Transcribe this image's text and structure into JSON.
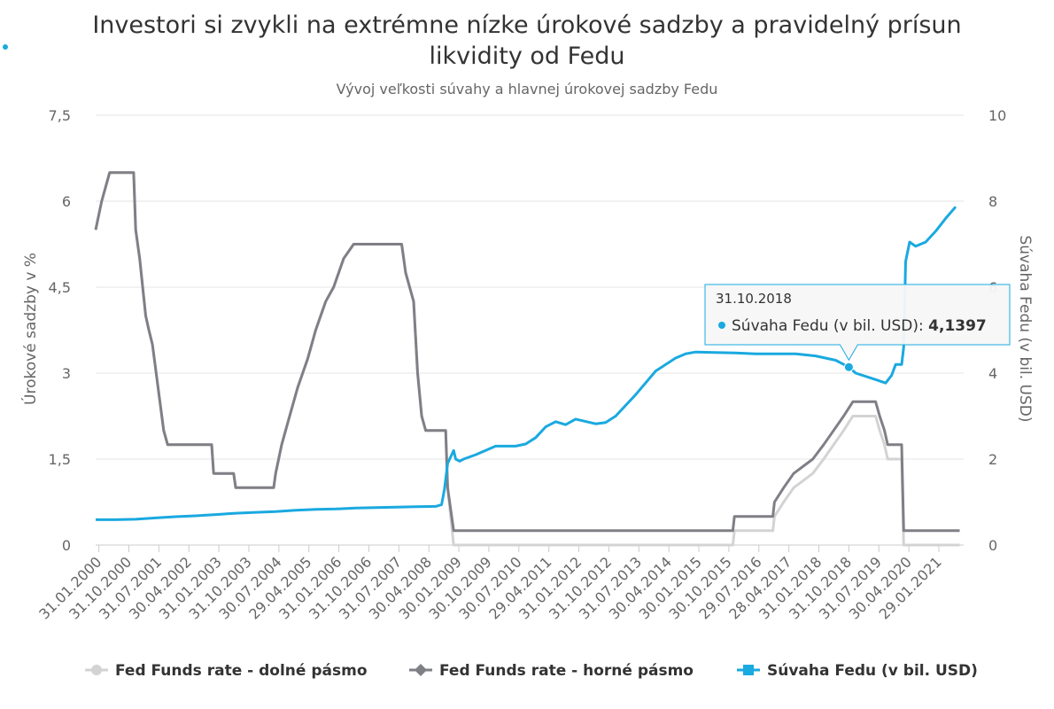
{
  "chart_data": {
    "type": "line",
    "title": "Investori si zvykli na extrémne nízke úrokové sadzby a pravidelný prísun likvidity od Fedu",
    "title_lines": [
      "Investori si zvykli na extrémne nízke úrokové sadzby a pravidelný prísun",
      "likvidity od Fedu"
    ],
    "subtitle": "Vývoj veľkosti súvahy a hlavnej úrokovej sadzby Fedu",
    "y_left": {
      "label": "Úrokové sadzby v %",
      "range": [
        0,
        7.5
      ],
      "ticks": [
        "0",
        "1,5",
        "3",
        "4,5",
        "6",
        "7,5"
      ],
      "tick_values": [
        0,
        1.5,
        3,
        4.5,
        6,
        7.5
      ]
    },
    "y_right": {
      "label": "Súvaha Fedu (v bil. USD)",
      "range": [
        0,
        10
      ],
      "ticks": [
        "0",
        "2",
        "4",
        "6",
        "8",
        "10"
      ],
      "tick_values": [
        0,
        2,
        4,
        6,
        8,
        10
      ]
    },
    "x_range": [
      2000.0,
      2021.7
    ],
    "x_tick_labels": [
      "31.01.2000",
      "31.10.2000",
      "31.07.2001",
      "30.04.2002",
      "31.01.2003",
      "31.10.2003",
      "30.07.2004",
      "29.04.2005",
      "31.01.2006",
      "31.10.2006",
      "31.07.2007",
      "30.04.2008",
      "30.01.2009",
      "30.10.2009",
      "30.07.2010",
      "29.04.2011",
      "31.01.2012",
      "31.10.2012",
      "31.07.2013",
      "30.04.2014",
      "30.01.2015",
      "30.10.2015",
      "29.07.2016",
      "28.04.2017",
      "31.01.2018",
      "31.10.2018",
      "31.07.2019",
      "30.04.2020",
      "29.01.2021"
    ],
    "x_tick_values": [
      2000.08,
      2000.83,
      2001.58,
      2002.33,
      2003.08,
      2003.83,
      2004.58,
      2005.33,
      2006.08,
      2006.83,
      2007.58,
      2008.33,
      2009.08,
      2009.83,
      2010.58,
      2011.33,
      2012.08,
      2012.83,
      2013.58,
      2014.33,
      2015.08,
      2015.83,
      2016.58,
      2017.33,
      2018.08,
      2018.83,
      2019.58,
      2020.33,
      2021.08
    ],
    "grid": true,
    "legend_position": "bottom",
    "series": [
      {
        "name": "Fed Funds rate - dolné pásmo",
        "axis": "left",
        "color": "#d3d3d3",
        "marker": "circle",
        "points": [
          [
            2000.0,
            5.5
          ],
          [
            2000.15,
            6.0
          ],
          [
            2000.35,
            6.5
          ],
          [
            2000.95,
            6.5
          ],
          [
            2001.0,
            5.5
          ],
          [
            2001.1,
            5.0
          ],
          [
            2001.25,
            4.0
          ],
          [
            2001.33,
            3.75
          ],
          [
            2001.42,
            3.5
          ],
          [
            2001.7,
            2.0
          ],
          [
            2001.8,
            1.75
          ],
          [
            2002.9,
            1.75
          ],
          [
            2002.95,
            1.25
          ],
          [
            2003.45,
            1.25
          ],
          [
            2003.5,
            1.0
          ],
          [
            2004.45,
            1.0
          ],
          [
            2004.5,
            1.25
          ],
          [
            2004.65,
            1.75
          ],
          [
            2004.85,
            2.25
          ],
          [
            2005.05,
            2.75
          ],
          [
            2005.3,
            3.25
          ],
          [
            2005.5,
            3.75
          ],
          [
            2005.75,
            4.25
          ],
          [
            2005.95,
            4.5
          ],
          [
            2006.2,
            5.0
          ],
          [
            2006.45,
            5.25
          ],
          [
            2007.65,
            5.25
          ],
          [
            2007.75,
            4.75
          ],
          [
            2007.85,
            4.5
          ],
          [
            2007.95,
            4.25
          ],
          [
            2008.05,
            3.0
          ],
          [
            2008.15,
            2.25
          ],
          [
            2008.25,
            2.0
          ],
          [
            2008.75,
            2.0
          ],
          [
            2008.8,
            1.0
          ],
          [
            2008.95,
            0.0
          ],
          [
            2015.93,
            0.0
          ],
          [
            2015.97,
            0.25
          ],
          [
            2016.93,
            0.25
          ],
          [
            2016.97,
            0.5
          ],
          [
            2017.2,
            0.75
          ],
          [
            2017.45,
            1.0
          ],
          [
            2017.93,
            1.25
          ],
          [
            2018.2,
            1.5
          ],
          [
            2018.45,
            1.75
          ],
          [
            2018.7,
            2.0
          ],
          [
            2018.93,
            2.25
          ],
          [
            2019.5,
            2.25
          ],
          [
            2019.6,
            2.0
          ],
          [
            2019.72,
            1.75
          ],
          [
            2019.8,
            1.5
          ],
          [
            2020.15,
            1.5
          ],
          [
            2020.2,
            0.0
          ],
          [
            2021.6,
            0.0
          ]
        ]
      },
      {
        "name": "Fed Funds rate - horné pásmo",
        "axis": "left",
        "color": "#7f7f86",
        "marker": "diamond",
        "points": [
          [
            2000.0,
            5.5
          ],
          [
            2000.15,
            6.0
          ],
          [
            2000.35,
            6.5
          ],
          [
            2000.95,
            6.5
          ],
          [
            2001.0,
            5.5
          ],
          [
            2001.1,
            5.0
          ],
          [
            2001.25,
            4.0
          ],
          [
            2001.33,
            3.75
          ],
          [
            2001.42,
            3.5
          ],
          [
            2001.7,
            2.0
          ],
          [
            2001.8,
            1.75
          ],
          [
            2002.9,
            1.75
          ],
          [
            2002.95,
            1.25
          ],
          [
            2003.45,
            1.25
          ],
          [
            2003.5,
            1.0
          ],
          [
            2004.45,
            1.0
          ],
          [
            2004.5,
            1.25
          ],
          [
            2004.65,
            1.75
          ],
          [
            2004.85,
            2.25
          ],
          [
            2005.05,
            2.75
          ],
          [
            2005.3,
            3.25
          ],
          [
            2005.5,
            3.75
          ],
          [
            2005.75,
            4.25
          ],
          [
            2005.95,
            4.5
          ],
          [
            2006.2,
            5.0
          ],
          [
            2006.45,
            5.25
          ],
          [
            2007.65,
            5.25
          ],
          [
            2007.75,
            4.75
          ],
          [
            2007.85,
            4.5
          ],
          [
            2007.95,
            4.25
          ],
          [
            2008.05,
            3.0
          ],
          [
            2008.15,
            2.25
          ],
          [
            2008.25,
            2.0
          ],
          [
            2008.75,
            2.0
          ],
          [
            2008.8,
            1.0
          ],
          [
            2008.95,
            0.25
          ],
          [
            2015.93,
            0.25
          ],
          [
            2015.97,
            0.5
          ],
          [
            2016.93,
            0.5
          ],
          [
            2016.97,
            0.75
          ],
          [
            2017.2,
            1.0
          ],
          [
            2017.45,
            1.25
          ],
          [
            2017.93,
            1.5
          ],
          [
            2018.2,
            1.75
          ],
          [
            2018.45,
            2.0
          ],
          [
            2018.7,
            2.25
          ],
          [
            2018.93,
            2.5
          ],
          [
            2019.5,
            2.5
          ],
          [
            2019.6,
            2.25
          ],
          [
            2019.72,
            2.0
          ],
          [
            2019.8,
            1.75
          ],
          [
            2020.15,
            1.75
          ],
          [
            2020.2,
            0.25
          ],
          [
            2021.6,
            0.25
          ]
        ]
      },
      {
        "name": "Súvaha Fedu (v bil. USD)",
        "axis": "right",
        "color": "#1aa9e0",
        "marker": "square",
        "points": [
          [
            2000.0,
            0.59
          ],
          [
            2000.5,
            0.59
          ],
          [
            2001.0,
            0.6
          ],
          [
            2001.5,
            0.63
          ],
          [
            2002.0,
            0.66
          ],
          [
            2002.5,
            0.68
          ],
          [
            2003.0,
            0.71
          ],
          [
            2003.5,
            0.74
          ],
          [
            2004.0,
            0.76
          ],
          [
            2004.5,
            0.78
          ],
          [
            2005.0,
            0.81
          ],
          [
            2005.5,
            0.83
          ],
          [
            2006.0,
            0.84
          ],
          [
            2006.5,
            0.86
          ],
          [
            2007.0,
            0.87
          ],
          [
            2007.5,
            0.88
          ],
          [
            2008.0,
            0.89
          ],
          [
            2008.5,
            0.9
          ],
          [
            2008.65,
            0.94
          ],
          [
            2008.72,
            1.3
          ],
          [
            2008.8,
            1.9
          ],
          [
            2008.95,
            2.2
          ],
          [
            2009.0,
            2.0
          ],
          [
            2009.1,
            1.95
          ],
          [
            2009.2,
            2.0
          ],
          [
            2009.5,
            2.1
          ],
          [
            2010.0,
            2.3
          ],
          [
            2010.5,
            2.3
          ],
          [
            2010.75,
            2.35
          ],
          [
            2011.0,
            2.5
          ],
          [
            2011.25,
            2.75
          ],
          [
            2011.5,
            2.87
          ],
          [
            2011.75,
            2.8
          ],
          [
            2012.0,
            2.93
          ],
          [
            2012.5,
            2.82
          ],
          [
            2012.75,
            2.85
          ],
          [
            2013.0,
            3.0
          ],
          [
            2013.5,
            3.5
          ],
          [
            2014.0,
            4.05
          ],
          [
            2014.5,
            4.35
          ],
          [
            2014.75,
            4.45
          ],
          [
            2015.0,
            4.49
          ],
          [
            2016.0,
            4.47
          ],
          [
            2016.5,
            4.45
          ],
          [
            2017.0,
            4.45
          ],
          [
            2017.5,
            4.45
          ],
          [
            2018.0,
            4.4
          ],
          [
            2018.5,
            4.3
          ],
          [
            2018.83,
            4.1397
          ],
          [
            2019.0,
            4.0
          ],
          [
            2019.5,
            3.85
          ],
          [
            2019.75,
            3.77
          ],
          [
            2019.9,
            3.95
          ],
          [
            2020.0,
            4.2
          ],
          [
            2020.15,
            4.2
          ],
          [
            2020.2,
            4.6
          ],
          [
            2020.25,
            6.6
          ],
          [
            2020.35,
            7.05
          ],
          [
            2020.5,
            6.95
          ],
          [
            2020.75,
            7.05
          ],
          [
            2021.0,
            7.3
          ],
          [
            2021.25,
            7.6
          ],
          [
            2021.5,
            7.87
          ]
        ]
      }
    ],
    "tooltip": {
      "date": "31.10.2018",
      "series": "Súvaha Fedu (v bil. USD)",
      "value": "4,1397",
      "x": 2018.83
    }
  },
  "legend": [
    {
      "label": "Fed Funds rate - dolné pásmo",
      "color": "#d3d3d3",
      "marker": "circle"
    },
    {
      "label": "Fed Funds rate - horné pásmo",
      "color": "#7f7f86",
      "marker": "diamond"
    },
    {
      "label": "Súvaha Fedu (v bil. USD)",
      "color": "#1aa9e0",
      "marker": "square"
    }
  ]
}
